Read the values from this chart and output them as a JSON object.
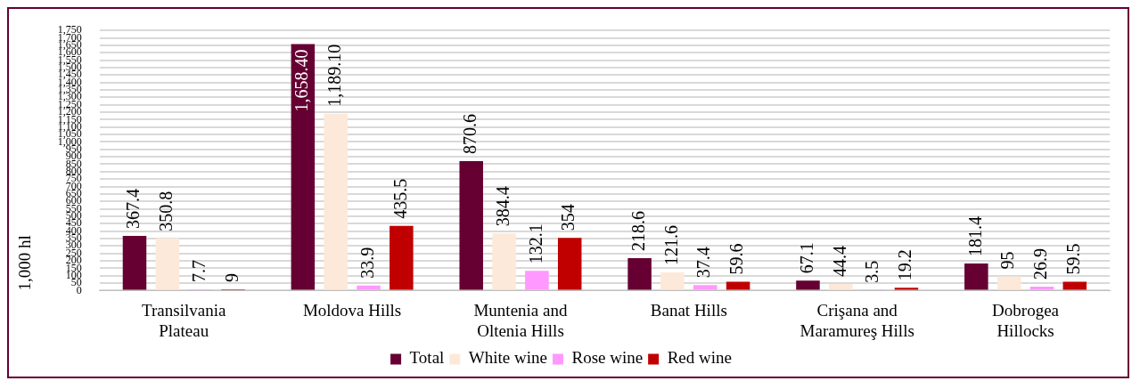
{
  "chart_data": {
    "type": "bar",
    "ylabel": "1,000 hl",
    "categories": [
      "Transilvania Plateau",
      "Moldova Hills",
      "Muntenia and Oltenia Hills",
      "Banat Hills",
      "Crişana and Maramureş Hills",
      "Dobrogea Hillocks"
    ],
    "series": [
      {
        "name": "Total",
        "color": "#660033",
        "values": [
          367.4,
          1658.4,
          870.6,
          218.6,
          67.1,
          181.4
        ],
        "value_labels": [
          "367.4",
          "1,658.40",
          "870.6",
          "218.6",
          "67.1",
          "181.4"
        ]
      },
      {
        "name": "White wine",
        "color": "#fde9d9",
        "values": [
          350.8,
          1189.1,
          384.4,
          121.6,
          44.4,
          95
        ],
        "value_labels": [
          "350.8",
          "1,189.10",
          "384.4",
          "121.6",
          "44.4",
          "95"
        ]
      },
      {
        "name": "Rose wine",
        "color": "#ff99ff",
        "values": [
          7.7,
          33.9,
          132.1,
          37.4,
          3.5,
          26.9
        ],
        "value_labels": [
          "7.7",
          "33.9",
          "132.1",
          "37.4",
          "3.5",
          "26.9"
        ]
      },
      {
        "name": "Red wine",
        "color": "#c00000",
        "values": [
          9,
          435.5,
          354,
          59.6,
          19.2,
          59.5
        ],
        "value_labels": [
          "9",
          "435.5",
          "354",
          "59.6",
          "19.2",
          "59.5"
        ]
      }
    ],
    "ylim": [
      0,
      1750
    ],
    "yticks": [
      0,
      50,
      100,
      150,
      200,
      250,
      300,
      350,
      400,
      450,
      500,
      550,
      600,
      650,
      700,
      750,
      800,
      850,
      900,
      950,
      {
        "value": 1000,
        "label": "1,000"
      },
      {
        "value": 1050,
        "label": "1,050"
      },
      {
        "value": 1100,
        "label": "1,100"
      },
      {
        "value": 1150,
        "label": "1,150"
      },
      {
        "value": 1200,
        "label": "1,200"
      },
      {
        "value": 1250,
        "label": "1,250"
      },
      {
        "value": 1300,
        "label": "1,300"
      },
      {
        "value": 1350,
        "label": "1,350"
      },
      {
        "value": 1400,
        "label": "1,400"
      },
      {
        "value": 1450,
        "label": "1,450"
      },
      {
        "value": 1500,
        "label": "1,500"
      },
      {
        "value": 1550,
        "label": "1,550"
      },
      {
        "value": 1600,
        "label": "1,600"
      },
      {
        "value": 1650,
        "label": "1,650"
      },
      {
        "value": 1700,
        "label": "1,700"
      },
      {
        "value": 1750,
        "label": "1,750"
      }
    ],
    "grid": "y",
    "legend": "bottom"
  }
}
